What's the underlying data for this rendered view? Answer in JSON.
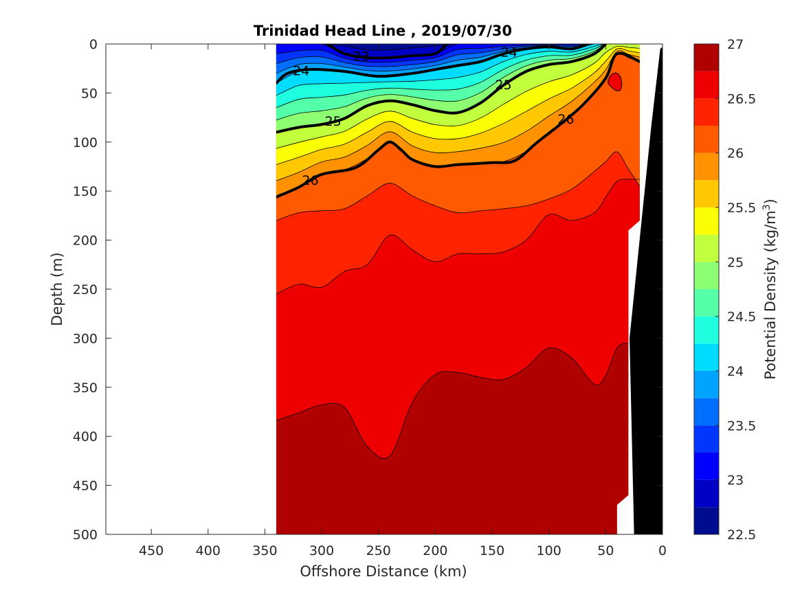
{
  "chart_data": {
    "type": "contourf",
    "title": "Trinidad Head Line , 2019/07/30",
    "xlabel": "Offshore Distance (km)",
    "ylabel": "Depth (m)",
    "xlim": [
      490,
      0
    ],
    "ylim": [
      0,
      500
    ],
    "x_reversed": true,
    "y_reversed": true,
    "xticks": [
      450,
      400,
      350,
      300,
      250,
      200,
      150,
      100,
      50,
      0
    ],
    "yticks": [
      0,
      50,
      100,
      150,
      200,
      250,
      300,
      350,
      400,
      450,
      500
    ],
    "colorbar": {
      "label": "Potential Density (kg/m",
      "label_sup": "3",
      "label_end": ")",
      "range": [
        22.5,
        27
      ],
      "ticks": [
        27,
        26.5,
        26,
        25.5,
        25,
        24.5,
        24,
        23.5,
        23,
        22.5
      ],
      "levels": [
        22.5,
        22.75,
        23,
        23.25,
        23.5,
        23.75,
        24,
        24.25,
        24.5,
        24.75,
        25,
        25.25,
        25.5,
        25.75,
        26,
        26.25,
        26.5,
        26.75,
        27
      ],
      "colors": [
        "#000c8f",
        "#0000c4",
        "#0000ff",
        "#0036ff",
        "#006eff",
        "#00a4ff",
        "#00dcff",
        "#1effe0",
        "#55ffaa",
        "#8cff72",
        "#c2ff3c",
        "#faff04",
        "#ffc800",
        "#ff9200",
        "#ff5a00",
        "#ff2300",
        "#ee0000",
        "#b00000"
      ]
    },
    "data_extent_km": [
      340,
      20
    ],
    "bottom_depth_m": [
      [
        340,
        500
      ],
      [
        40,
        500
      ],
      [
        40,
        470
      ],
      [
        30,
        460
      ],
      [
        30,
        190
      ],
      [
        20,
        180
      ]
    ],
    "contours": [
      {
        "level": 23,
        "label": "23",
        "x": [
          295,
          280,
          260,
          240,
          220,
          200,
          190
        ],
        "y": [
          0,
          10,
          14,
          14,
          12,
          10,
          0
        ]
      },
      {
        "level": 24,
        "label": "24",
        "x": [
          340,
          330,
          310,
          280,
          250,
          220,
          200,
          180,
          160,
          140,
          120,
          100,
          80,
          65
        ],
        "y": [
          40,
          30,
          26,
          28,
          33,
          30,
          26,
          22,
          18,
          10,
          5,
          3,
          5,
          0
        ]
      },
      {
        "level": 25,
        "label": "25",
        "x": [
          340,
          320,
          300,
          280,
          260,
          240,
          220,
          200,
          180,
          160,
          140,
          120,
          100,
          80,
          60,
          50
        ],
        "y": [
          90,
          85,
          82,
          76,
          63,
          58,
          62,
          68,
          70,
          60,
          42,
          28,
          21,
          18,
          10,
          0
        ]
      },
      {
        "level": 26,
        "label": "26",
        "x": [
          340,
          320,
          300,
          270,
          250,
          240,
          230,
          220,
          200,
          180,
          150,
          130,
          110,
          90,
          70,
          50,
          40,
          20
        ],
        "y": [
          156,
          146,
          133,
          126,
          108,
          100,
          108,
          118,
          125,
          123,
          121,
          119,
          100,
          82,
          62,
          35,
          10,
          18
        ]
      }
    ],
    "isopycnal_boundaries": [
      {
        "level": 26.25,
        "x": [
          340,
          320,
          300,
          280,
          260,
          240,
          220,
          200,
          180,
          160,
          140,
          120,
          100,
          80,
          60,
          50,
          40,
          20
        ],
        "y": [
          180,
          172,
          170,
          168,
          155,
          142,
          155,
          165,
          172,
          170,
          168,
          165,
          158,
          148,
          130,
          120,
          110,
          145
        ]
      },
      {
        "level": 26.5,
        "x": [
          340,
          320,
          300,
          280,
          260,
          240,
          230,
          220,
          200,
          180,
          160,
          140,
          120,
          110,
          100,
          80,
          60,
          40,
          30
        ],
        "y": [
          255,
          245,
          248,
          232,
          225,
          195,
          200,
          210,
          222,
          214,
          214,
          212,
          200,
          180,
          174,
          180,
          172,
          140,
          138
        ]
      },
      {
        "level": 26.75,
        "x": [
          340,
          320,
          300,
          285,
          275,
          265,
          255,
          245,
          240,
          230,
          220,
          210,
          200,
          180,
          160,
          140,
          120,
          100,
          90,
          80,
          70,
          60,
          50,
          45,
          40,
          30
        ],
        "y": [
          384,
          376,
          368,
          366,
          375,
          400,
          420,
          430,
          420,
          400,
          365,
          345,
          337,
          335,
          340,
          342,
          330,
          310,
          312,
          320,
          345,
          347,
          338,
          318,
          310,
          305
        ]
      }
    ]
  }
}
